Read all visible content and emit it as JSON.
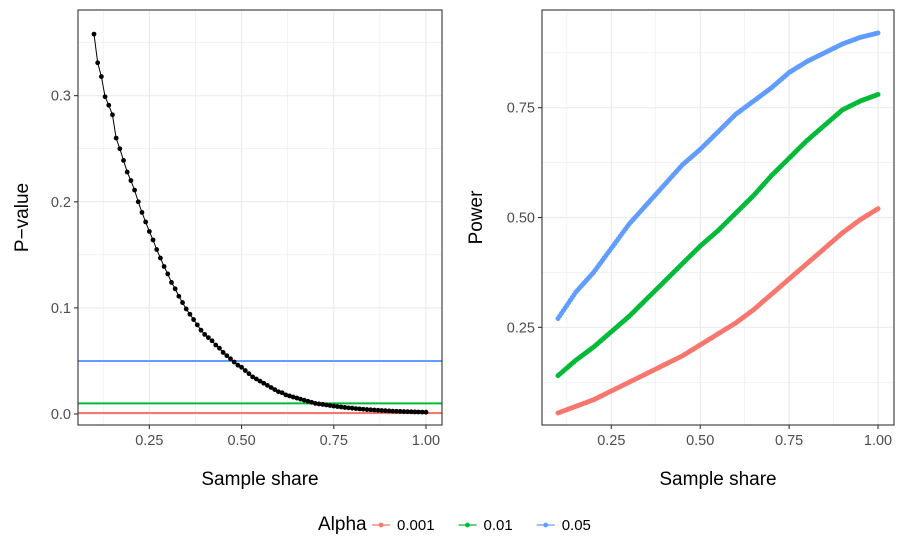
{
  "chart_data": [
    {
      "type": "line",
      "panel": "left",
      "xlabel": "Sample share",
      "ylabel": "P−value",
      "xlim": [
        0.1,
        1.0
      ],
      "ylim": [
        0.0,
        0.36
      ],
      "x_ticks": [
        0.25,
        0.5,
        0.75,
        1.0
      ],
      "x_tick_labels": [
        "0.25",
        "0.50",
        "0.75",
        "1.00"
      ],
      "y_ticks": [
        0.0,
        0.1,
        0.2,
        0.3
      ],
      "y_tick_labels": [
        "0.0",
        "0.1",
        "0.2",
        "0.3"
      ],
      "grid": true,
      "series": [
        {
          "color": "#000000",
          "x": [
            0.1,
            0.11,
            0.12,
            0.13,
            0.14,
            0.15,
            0.16,
            0.17,
            0.18,
            0.19,
            0.2,
            0.21,
            0.22,
            0.23,
            0.24,
            0.25,
            0.26,
            0.27,
            0.28,
            0.29,
            0.3,
            0.31,
            0.32,
            0.33,
            0.34,
            0.35,
            0.36,
            0.37,
            0.38,
            0.39,
            0.4,
            0.41,
            0.42,
            0.43,
            0.44,
            0.45,
            0.46,
            0.47,
            0.48,
            0.49,
            0.5,
            0.51,
            0.52,
            0.53,
            0.54,
            0.55,
            0.56,
            0.57,
            0.58,
            0.59,
            0.6,
            0.61,
            0.62,
            0.63,
            0.64,
            0.65,
            0.66,
            0.67,
            0.68,
            0.69,
            0.7,
            0.71,
            0.72,
            0.73,
            0.74,
            0.75,
            0.76,
            0.77,
            0.78,
            0.79,
            0.8,
            0.81,
            0.82,
            0.83,
            0.84,
            0.85,
            0.86,
            0.87,
            0.88,
            0.89,
            0.9,
            0.91,
            0.92,
            0.93,
            0.94,
            0.95,
            0.96,
            0.97,
            0.98,
            0.99,
            1.0
          ],
          "y": [
            0.358,
            0.331,
            0.318,
            0.299,
            0.291,
            0.282,
            0.26,
            0.25,
            0.239,
            0.228,
            0.22,
            0.211,
            0.2,
            0.19,
            0.181,
            0.172,
            0.164,
            0.155,
            0.147,
            0.139,
            0.132,
            0.124,
            0.118,
            0.111,
            0.105,
            0.099,
            0.094,
            0.089,
            0.084,
            0.079,
            0.075,
            0.072,
            0.069,
            0.065,
            0.062,
            0.058,
            0.055,
            0.052,
            0.049,
            0.046,
            0.044,
            0.041,
            0.038,
            0.035,
            0.033,
            0.031,
            0.029,
            0.027,
            0.025,
            0.023,
            0.021,
            0.02,
            0.018,
            0.017,
            0.016,
            0.015,
            0.014,
            0.013,
            0.012,
            0.011,
            0.01,
            0.0095,
            0.009,
            0.0085,
            0.008,
            0.0075,
            0.007,
            0.0066,
            0.0062,
            0.0058,
            0.0055,
            0.0051,
            0.0048,
            0.0045,
            0.0042,
            0.004,
            0.0037,
            0.0035,
            0.0033,
            0.0031,
            0.0029,
            0.0027,
            0.0026,
            0.0024,
            0.0023,
            0.0022,
            0.0021,
            0.002,
            0.0019,
            0.0018,
            0.0017
          ]
        }
      ],
      "hlines": [
        {
          "alpha": "0.001",
          "y": 0.001,
          "color": "#F8766D"
        },
        {
          "alpha": "0.01",
          "y": 0.01,
          "color": "#00BA38"
        },
        {
          "alpha": "0.05",
          "y": 0.05,
          "color": "#619CFF"
        }
      ]
    },
    {
      "type": "scatter",
      "panel": "right",
      "xlabel": "Sample share",
      "ylabel": "Power",
      "xlim": [
        0.1,
        1.0
      ],
      "ylim": [
        0.055,
        0.92
      ],
      "x_ticks": [
        0.25,
        0.5,
        0.75,
        1.0
      ],
      "x_tick_labels": [
        "0.25",
        "0.50",
        "0.75",
        "1.00"
      ],
      "y_ticks": [
        0.25,
        0.5,
        0.75
      ],
      "y_tick_labels": [
        "0.25",
        "0.50",
        "0.75"
      ],
      "grid": true,
      "x": [
        0.1,
        0.15,
        0.2,
        0.25,
        0.3,
        0.35,
        0.4,
        0.45,
        0.5,
        0.55,
        0.6,
        0.65,
        0.7,
        0.75,
        0.8,
        0.85,
        0.9,
        0.95,
        1.0
      ],
      "series": [
        {
          "name": "0.001",
          "color": "#F8766D",
          "y": [
            0.055,
            0.07,
            0.085,
            0.105,
            0.125,
            0.145,
            0.165,
            0.185,
            0.21,
            0.235,
            0.26,
            0.29,
            0.325,
            0.36,
            0.395,
            0.43,
            0.465,
            0.495,
            0.52
          ]
        },
        {
          "name": "0.01",
          "color": "#00BA38",
          "y": [
            0.14,
            0.175,
            0.205,
            0.24,
            0.275,
            0.315,
            0.355,
            0.395,
            0.435,
            0.47,
            0.51,
            0.55,
            0.595,
            0.635,
            0.675,
            0.71,
            0.745,
            0.765,
            0.78
          ]
        },
        {
          "name": "0.05",
          "color": "#619CFF",
          "y": [
            0.27,
            0.33,
            0.375,
            0.43,
            0.485,
            0.53,
            0.575,
            0.62,
            0.655,
            0.695,
            0.735,
            0.765,
            0.795,
            0.83,
            0.855,
            0.875,
            0.895,
            0.91,
            0.92
          ]
        }
      ]
    }
  ],
  "legend": {
    "title": "Alpha",
    "placement": "bottom",
    "items": [
      {
        "label": "0.001",
        "color": "#F8766D"
      },
      {
        "label": "0.01",
        "color": "#00BA38"
      },
      {
        "label": "0.05",
        "color": "#619CFF"
      }
    ]
  }
}
